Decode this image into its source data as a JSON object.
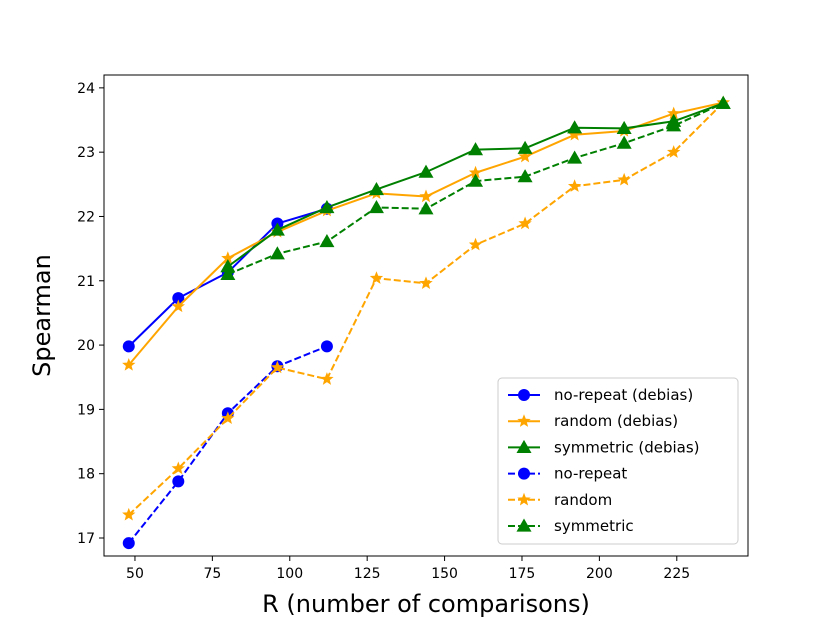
{
  "chart_data": {
    "type": "line",
    "title": "",
    "xlabel": "R (number of comparisons)",
    "ylabel": "Spearman",
    "xlim": [
      40,
      248
    ],
    "ylim": [
      16.72,
      24.2
    ],
    "xticks": [
      50,
      75,
      100,
      125,
      150,
      175,
      200,
      225
    ],
    "yticks": [
      17,
      18,
      19,
      20,
      21,
      22,
      23,
      24
    ],
    "xtick_labels": [
      "50",
      "75",
      "100",
      "125",
      "150",
      "175",
      "200",
      "225"
    ],
    "ytick_labels": [
      "17",
      "18",
      "19",
      "20",
      "21",
      "22",
      "23",
      "24"
    ],
    "legend_position": "lower-right",
    "series": [
      {
        "name": "no-repeat (debias)",
        "color": "#0000ff",
        "linestyle": "solid",
        "marker": "circle",
        "x": [
          48,
          64,
          80,
          96,
          112
        ],
        "values": [
          19.98,
          20.73,
          21.13,
          21.89,
          22.12
        ]
      },
      {
        "name": "random (debias)",
        "color": "#ffa500",
        "linestyle": "solid",
        "marker": "star",
        "x": [
          48,
          64,
          80,
          96,
          112,
          128,
          144,
          160,
          176,
          192,
          208,
          224,
          240
        ],
        "values": [
          19.69,
          20.6,
          21.35,
          21.76,
          22.09,
          22.36,
          22.31,
          22.68,
          22.93,
          23.27,
          23.33,
          23.6,
          23.77
        ]
      },
      {
        "name": "symmetric (debias)",
        "color": "#008000",
        "linestyle": "solid",
        "marker": "triangle",
        "x": [
          80,
          96,
          112,
          128,
          144,
          160,
          176,
          192,
          208,
          224,
          240
        ],
        "values": [
          21.22,
          21.79,
          22.14,
          22.42,
          22.69,
          23.04,
          23.06,
          23.38,
          23.37,
          23.48,
          23.76
        ]
      },
      {
        "name": "no-repeat",
        "color": "#0000ff",
        "linestyle": "dashed",
        "marker": "circle",
        "x": [
          48,
          64,
          80,
          96,
          112
        ],
        "values": [
          16.92,
          17.88,
          18.94,
          19.67,
          19.98
        ]
      },
      {
        "name": "random",
        "color": "#ffa500",
        "linestyle": "dashed",
        "marker": "star",
        "x": [
          48,
          64,
          80,
          96,
          112,
          128,
          144,
          160,
          176,
          192,
          208,
          224,
          240
        ],
        "values": [
          17.36,
          18.08,
          18.86,
          19.65,
          19.47,
          21.04,
          20.96,
          21.56,
          21.89,
          22.47,
          22.57,
          23.0,
          23.77
        ]
      },
      {
        "name": "symmetric",
        "color": "#008000",
        "linestyle": "dashed",
        "marker": "triangle",
        "x": [
          80,
          96,
          112,
          128,
          144,
          160,
          176,
          192,
          208,
          224,
          240
        ],
        "values": [
          21.1,
          21.42,
          21.61,
          22.14,
          22.12,
          22.55,
          22.62,
          22.91,
          23.14,
          23.41,
          23.76
        ]
      }
    ]
  }
}
